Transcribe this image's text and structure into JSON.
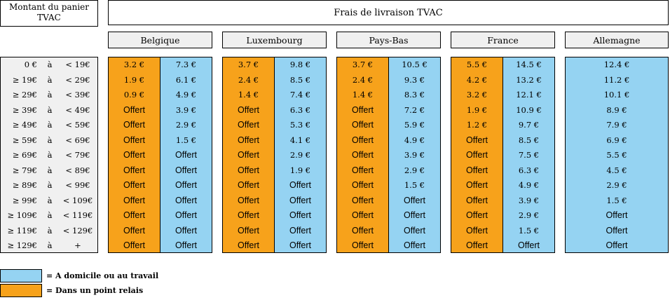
{
  "header": {
    "montant_line1": "Montant du panier",
    "montant_line2": "TVAC",
    "frais": "Frais de livraison TVAC"
  },
  "countries": [
    "Belgique",
    "Luxembourg",
    "Pays-Bas",
    "France",
    "Allemagne"
  ],
  "ranges": [
    {
      "from": "0 €",
      "a": "à",
      "to": "< 19€"
    },
    {
      "from": "≥ 19€",
      "a": "à",
      "to": "< 29€"
    },
    {
      "from": "≥ 29€",
      "a": "à",
      "to": "< 39€"
    },
    {
      "from": "≥ 39€",
      "a": "à",
      "to": "< 49€"
    },
    {
      "from": "≥ 49€",
      "a": "à",
      "to": "< 59€"
    },
    {
      "from": "≥ 59€",
      "a": "à",
      "to": "< 69€"
    },
    {
      "from": "≥ 69€",
      "a": "à",
      "to": "< 79€"
    },
    {
      "from": "≥ 79€",
      "a": "à",
      "to": "< 89€"
    },
    {
      "from": "≥ 89€",
      "a": "à",
      "to": "< 99€"
    },
    {
      "from": "≥ 99€",
      "a": "à",
      "to": "< 109€"
    },
    {
      "from": "≥ 109€",
      "a": "à",
      "to": "< 119€"
    },
    {
      "from": "≥ 119€",
      "a": "à",
      "to": "< 129€"
    },
    {
      "from": "≥ 129€",
      "a": "à",
      "to": "+"
    }
  ],
  "columns": [
    {
      "country": "Belgique",
      "type": "relais",
      "values": [
        "3.2 €",
        "1.9 €",
        "0.9 €",
        "Offert",
        "Offert",
        "Offert",
        "Offert",
        "Offert",
        "Offert",
        "Offert",
        "Offert",
        "Offert",
        "Offert"
      ]
    },
    {
      "country": "Belgique",
      "type": "domicile",
      "values": [
        "7.3 €",
        "6.1 €",
        "4.9 €",
        "3.9 €",
        "2.9 €",
        "1.5 €",
        "Offert",
        "Offert",
        "Offert",
        "Offert",
        "Offert",
        "Offert",
        "Offert"
      ]
    },
    {
      "country": "Luxembourg",
      "type": "relais",
      "values": [
        "3.7 €",
        "2.4 €",
        "1.4 €",
        "Offert",
        "Offert",
        "Offert",
        "Offert",
        "Offert",
        "Offert",
        "Offert",
        "Offert",
        "Offert",
        "Offert"
      ]
    },
    {
      "country": "Luxembourg",
      "type": "domicile",
      "values": [
        "9.8 €",
        "8.5 €",
        "7.4 €",
        "6.3 €",
        "5.3 €",
        "4.1 €",
        "2.9 €",
        "1.9 €",
        "Offert",
        "Offert",
        "Offert",
        "Offert",
        "Offert"
      ]
    },
    {
      "country": "Pays-Bas",
      "type": "relais",
      "values": [
        "3.7 €",
        "2.4 €",
        "1.4 €",
        "Offert",
        "Offert",
        "Offert",
        "Offert",
        "Offert",
        "Offert",
        "Offert",
        "Offert",
        "Offert",
        "Offert"
      ]
    },
    {
      "country": "Pays-Bas",
      "type": "domicile",
      "values": [
        "10.5 €",
        "9.3 €",
        "8.3 €",
        "7.2 €",
        "5.9 €",
        "4.9 €",
        "3.9 €",
        "2.9 €",
        "1.5 €",
        "Offert",
        "Offert",
        "Offert",
        "Offert"
      ]
    },
    {
      "country": "France",
      "type": "relais",
      "values": [
        "5.5 €",
        "4.2 €",
        "3.2 €",
        "1.9 €",
        "1.2 €",
        "Offert",
        "Offert",
        "Offert",
        "Offert",
        "Offert",
        "Offert",
        "Offert",
        "Offert"
      ]
    },
    {
      "country": "France",
      "type": "domicile",
      "values": [
        "14.5 €",
        "13.2 €",
        "12.1 €",
        "10.9 €",
        "9.7 €",
        "8.5 €",
        "7.5 €",
        "6.3 €",
        "4.9 €",
        "3.9 €",
        "2.9 €",
        "1.5 €",
        "Offert"
      ]
    },
    {
      "country": "Allemagne",
      "type": "domicile",
      "values": [
        "12.4 €",
        "11.2 €",
        "10.1 €",
        "8.9 €",
        "7.9 €",
        "6.9 €",
        "5.5 €",
        "4.5 €",
        "2.9 €",
        "1.5 €",
        "Offert",
        "Offert",
        "Offert"
      ]
    }
  ],
  "legend": {
    "domicile": "=  A domicile ou au travail",
    "relais": "=  Dans un point relais"
  },
  "colors": {
    "relais": "#f7a21b",
    "domicile": "#95d3f2",
    "header_bg": "#f0f0f0"
  }
}
